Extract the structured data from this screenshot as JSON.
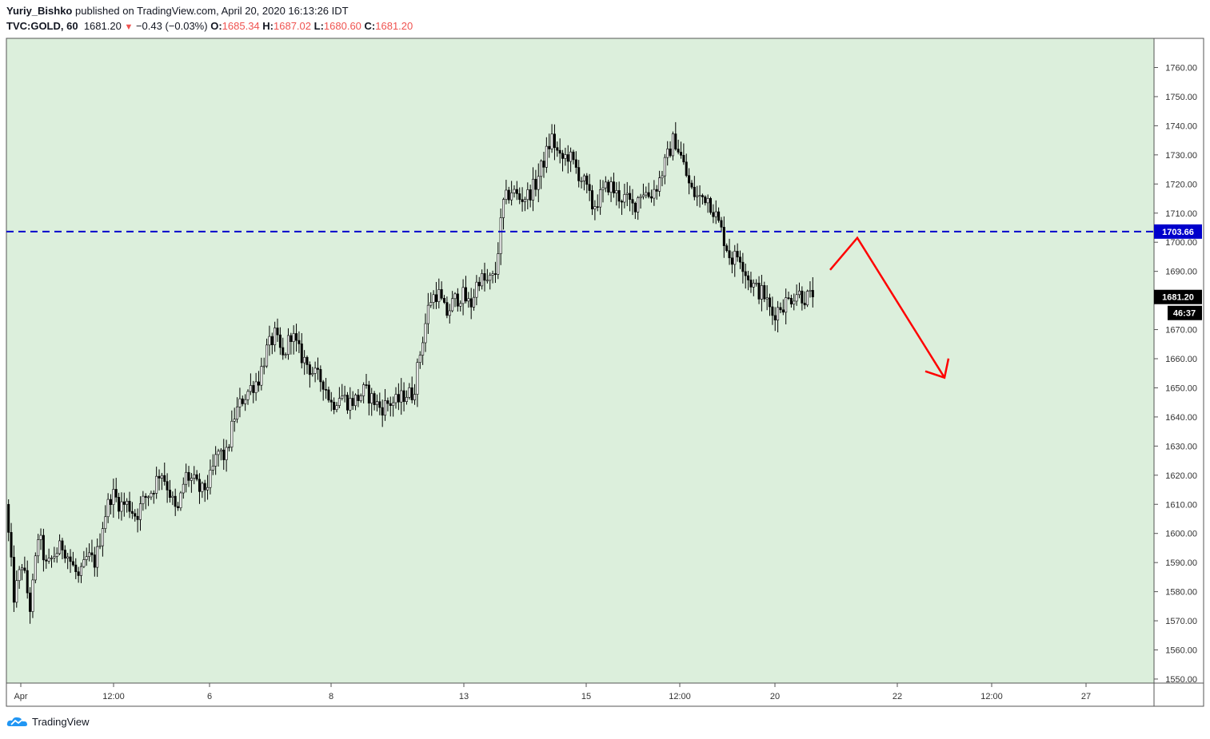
{
  "header": {
    "author": "Yuriy_Bishko",
    "published_text": "published on TradingView.com, April 20, 2020 16:13:26 IDT",
    "symbol": "TVC:GOLD, 60",
    "last": "1681.20",
    "change": "−0.43 (−0.03%)",
    "o_label": "O:",
    "o_value": "1685.34",
    "h_label": "H:",
    "h_value": "1687.02",
    "l_label": "L:",
    "l_value": "1680.60",
    "c_label": "C:",
    "c_value": "1681.20"
  },
  "footer": {
    "brand": "TradingView"
  },
  "colors": {
    "plot_bg": "#dcefdc",
    "candle": "#000000",
    "level_line": "#0000cc",
    "arrow": "#ff0000",
    "axis_text": "#333333"
  },
  "chart_data": {
    "type": "candlestick",
    "symbol": "TVC:GOLD",
    "interval": "60",
    "ylim": [
      1547,
      1767
    ],
    "y_ticks": [
      "1760.00",
      "1750.00",
      "1740.00",
      "1730.00",
      "1720.00",
      "1710.00",
      "1700.00",
      "1690.00",
      "1680.00",
      "1670.00",
      "1660.00",
      "1650.00",
      "1640.00",
      "1630.00",
      "1620.00",
      "1610.00",
      "1600.00",
      "1590.00",
      "1580.00",
      "1570.00",
      "1560.00",
      "1550.00"
    ],
    "x_ticks": [
      "Apr",
      "12:00",
      "6",
      "8",
      "13",
      "15",
      "12:00",
      "20",
      "22",
      "12:00",
      "27"
    ],
    "price_path": [
      [
        1610,
        1578
      ],
      [
        1590,
        1574
      ],
      [
        1600,
        1588
      ],
      [
        1593,
        1596
      ],
      [
        1590,
        1584
      ],
      [
        1592,
        1590
      ],
      [
        1605,
        1614
      ],
      [
        1610,
        1610
      ],
      [
        1606,
        1612
      ],
      [
        1615,
        1622
      ],
      [
        1615,
        1606
      ],
      [
        1620,
        1618
      ],
      [
        1614,
        1618
      ],
      [
        1628,
        1626
      ],
      [
        1640,
        1646
      ],
      [
        1650,
        1653
      ],
      [
        1663,
        1668
      ],
      [
        1660,
        1669
      ],
      [
        1662,
        1658
      ],
      [
        1654,
        1652
      ],
      [
        1644,
        1648
      ],
      [
        1645,
        1646
      ],
      [
        1649,
        1646
      ],
      [
        1643,
        1645
      ],
      [
        1645,
        1648
      ],
      [
        1648,
        1665
      ],
      [
        1680,
        1683
      ],
      [
        1675,
        1680
      ],
      [
        1682,
        1678
      ],
      [
        1688,
        1686
      ],
      [
        1688,
        1713
      ],
      [
        1718,
        1715
      ],
      [
        1716,
        1720
      ],
      [
        1728,
        1736
      ],
      [
        1728,
        1730
      ],
      [
        1725,
        1720
      ],
      [
        1712,
        1716
      ],
      [
        1720,
        1716
      ],
      [
        1715,
        1712
      ],
      [
        1718,
        1716
      ],
      [
        1720,
        1728
      ],
      [
        1736,
        1728
      ],
      [
        1718,
        1715
      ],
      [
        1716,
        1710
      ],
      [
        1702,
        1694
      ],
      [
        1696,
        1688
      ],
      [
        1684,
        1682
      ],
      [
        1675,
        1678
      ],
      [
        1680,
        1683
      ],
      [
        1681,
        1681.2
      ]
    ],
    "current_price": "1681.20",
    "countdown": "46:37",
    "horizontal_level": {
      "value": 1703.66,
      "label": "1703.66"
    },
    "projection_arrow": [
      [
        1690.5,
        "2020-04-21"
      ],
      [
        1701.5,
        "2020-04-21"
      ],
      [
        1653.5,
        "2020-04-22"
      ]
    ]
  }
}
